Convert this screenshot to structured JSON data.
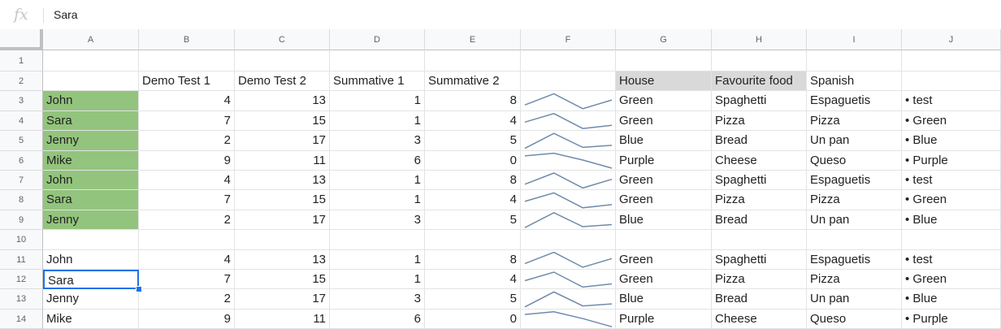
{
  "formula_bar": {
    "fx_label": "fx",
    "value": "Sara"
  },
  "columns": [
    "A",
    "B",
    "C",
    "D",
    "E",
    "F",
    "G",
    "H",
    "I",
    "J"
  ],
  "row_numbers": [
    "1",
    "2",
    "3",
    "4",
    "5",
    "6",
    "7",
    "8",
    "9",
    "10",
    "11",
    "12",
    "13",
    "14"
  ],
  "header_row": {
    "B": "Demo Test 1",
    "C": "Demo Test 2",
    "D": "Summative 1",
    "E": "Summative 2",
    "G": "House",
    "H": "Favourite food",
    "I": "Spanish"
  },
  "data_rows": [
    {
      "row": 3,
      "name": "John",
      "b": "4",
      "c": "13",
      "d": "1",
      "e": "8",
      "house": "Green",
      "food": "Spaghetti",
      "spanish": "Espaguetis",
      "list": "• test",
      "green": true,
      "spark": [
        4,
        13,
        1,
        8
      ]
    },
    {
      "row": 4,
      "name": "Sara",
      "b": "7",
      "c": "15",
      "d": "1",
      "e": "4",
      "house": "Green",
      "food": "Pizza",
      "spanish": "Pizza",
      "list": "• Green",
      "green": true,
      "spark": [
        7,
        15,
        1,
        4
      ]
    },
    {
      "row": 5,
      "name": "Jenny",
      "b": "2",
      "c": "17",
      "d": "3",
      "e": "5",
      "house": "Blue",
      "food": "Bread",
      "spanish": "Un pan",
      "list": "• Blue",
      "green": true,
      "spark": [
        2,
        17,
        3,
        5
      ]
    },
    {
      "row": 6,
      "name": "Mike",
      "b": "9",
      "c": "11",
      "d": "6",
      "e": "0",
      "house": "Purple",
      "food": "Cheese",
      "spanish": "Queso",
      "list": "• Purple",
      "green": true,
      "spark": [
        9,
        11,
        6,
        0
      ]
    },
    {
      "row": 7,
      "name": "John",
      "b": "4",
      "c": "13",
      "d": "1",
      "e": "8",
      "house": "Green",
      "food": "Spaghetti",
      "spanish": "Espaguetis",
      "list": "• test",
      "green": true,
      "spark": [
        4,
        13,
        1,
        8
      ]
    },
    {
      "row": 8,
      "name": "Sara",
      "b": "7",
      "c": "15",
      "d": "1",
      "e": "4",
      "house": "Green",
      "food": "Pizza",
      "spanish": "Pizza",
      "list": "• Green",
      "green": true,
      "spark": [
        7,
        15,
        1,
        4
      ]
    },
    {
      "row": 9,
      "name": "Jenny",
      "b": "2",
      "c": "17",
      "d": "3",
      "e": "5",
      "house": "Blue",
      "food": "Bread",
      "spanish": "Un pan",
      "list": "• Blue",
      "green": true,
      "spark": [
        2,
        17,
        3,
        5
      ]
    },
    {
      "row": 11,
      "name": "John",
      "b": "4",
      "c": "13",
      "d": "1",
      "e": "8",
      "house": "Green",
      "food": "Spaghetti",
      "spanish": "Espaguetis",
      "list": "• test",
      "green": false,
      "spark": [
        4,
        13,
        1,
        8
      ]
    },
    {
      "row": 12,
      "name": "Sara",
      "b": "7",
      "c": "15",
      "d": "1",
      "e": "4",
      "house": "Green",
      "food": "Pizza",
      "spanish": "Pizza",
      "list": "• Green",
      "green": false,
      "spark": [
        7,
        15,
        1,
        4
      ],
      "selected": true
    },
    {
      "row": 13,
      "name": "Jenny",
      "b": "2",
      "c": "17",
      "d": "3",
      "e": "5",
      "house": "Blue",
      "food": "Bread",
      "spanish": "Un pan",
      "list": "• Blue",
      "green": false,
      "spark": [
        2,
        17,
        3,
        5
      ]
    },
    {
      "row": 14,
      "name": "Mike",
      "b": "9",
      "c": "11",
      "d": "6",
      "e": "0",
      "house": "Purple",
      "food": "Cheese",
      "spanish": "Queso",
      "list": "• Purple",
      "green": false,
      "spark": [
        9,
        11,
        6,
        0
      ]
    }
  ],
  "colors": {
    "cell_green": "#93c47d",
    "header_gray": "#d9d9d9",
    "selection_blue": "#1a73e8",
    "sparkline": "#6f8bab"
  }
}
